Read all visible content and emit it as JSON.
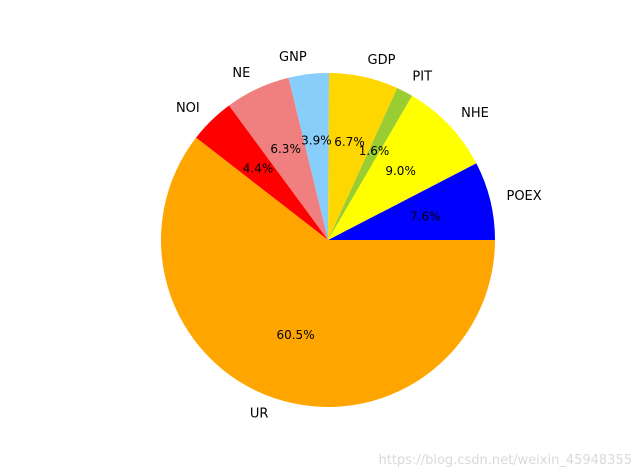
{
  "chart_data": {
    "type": "pie",
    "title": "",
    "start_angle_deg": 0,
    "direction": "counterclockwise",
    "slices": [
      {
        "label": "POEX",
        "value": 7.6,
        "pct_label": "7.6%",
        "color": "#0000ff"
      },
      {
        "label": "NHE",
        "value": 9.0,
        "pct_label": "9.0%",
        "color": "#ffff00"
      },
      {
        "label": "PIT",
        "value": 1.6,
        "pct_label": "1.6%",
        "color": "#9acd32"
      },
      {
        "label": "GDP",
        "value": 6.7,
        "pct_label": "6.7%",
        "color": "#ffd700"
      },
      {
        "label": "GNP",
        "value": 3.9,
        "pct_label": "3.9%",
        "color": "#87cefa"
      },
      {
        "label": "NE",
        "value": 6.3,
        "pct_label": "6.3%",
        "color": "#f08080"
      },
      {
        "label": "NOI",
        "value": 4.4,
        "pct_label": "4.4%",
        "color": "#ff0000"
      },
      {
        "label": "UR",
        "value": 60.5,
        "pct_label": "60.5%",
        "color": "#ffa500"
      }
    ]
  },
  "watermark": "https://blog.csdn.net/weixin_45948355"
}
